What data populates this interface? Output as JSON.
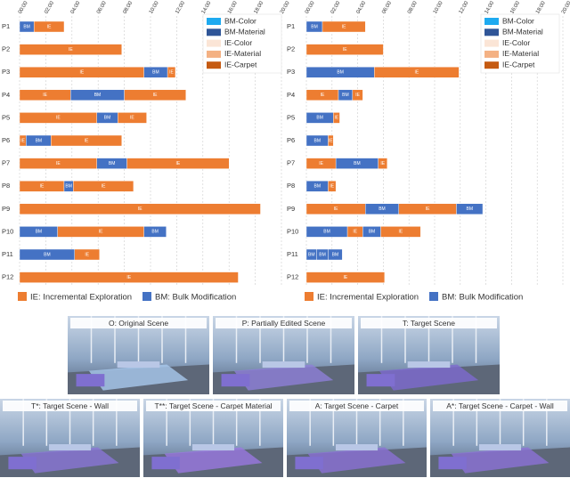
{
  "chart_data": [
    {
      "type": "timeline",
      "categories": [
        "P1",
        "P2",
        "P3",
        "P4",
        "P5",
        "P6",
        "P7",
        "P8",
        "P9",
        "P10",
        "P11",
        "P12"
      ],
      "segments": [
        [
          {
            "label": "BM",
            "start": 0,
            "end": 1.1
          },
          {
            "label": "IE",
            "start": 1.1,
            "end": 3.4
          }
        ],
        [
          {
            "label": "IE",
            "start": 0,
            "end": 7.8
          }
        ],
        [
          {
            "label": "IE",
            "start": 0,
            "end": 9.5
          },
          {
            "label": "BM",
            "start": 9.5,
            "end": 11.3
          },
          {
            "label": "IE",
            "start": 11.3,
            "end": 11.9
          }
        ],
        [
          {
            "label": "IE",
            "start": 0,
            "end": 3.9
          },
          {
            "label": "BM",
            "start": 3.9,
            "end": 8.0
          },
          {
            "label": "IE",
            "start": 8.0,
            "end": 12.7
          }
        ],
        [
          {
            "label": "IE",
            "start": 0,
            "end": 5.9
          },
          {
            "label": "BM",
            "start": 5.9,
            "end": 7.5
          },
          {
            "label": "IE",
            "start": 7.5,
            "end": 9.7
          }
        ],
        [
          {
            "label": "IE",
            "start": 0,
            "end": 0.5
          },
          {
            "label": "BM",
            "start": 0.5,
            "end": 2.4
          },
          {
            "label": "IE",
            "start": 2.4,
            "end": 7.8
          }
        ],
        [
          {
            "label": "IE",
            "start": 0,
            "end": 5.9
          },
          {
            "label": "BM",
            "start": 5.9,
            "end": 8.2
          },
          {
            "label": "IE",
            "start": 8.2,
            "end": 16.0
          }
        ],
        [
          {
            "label": "IE",
            "start": 0,
            "end": 3.4
          },
          {
            "label": "BM",
            "start": 3.4,
            "end": 4.1
          },
          {
            "label": "IE",
            "start": 4.1,
            "end": 8.7
          }
        ],
        [
          {
            "label": "IE",
            "start": 0,
            "end": 18.4
          }
        ],
        [
          {
            "label": "BM",
            "start": 0,
            "end": 2.9
          },
          {
            "label": "IE",
            "start": 2.9,
            "end": 9.5
          },
          {
            "label": "BM",
            "start": 9.5,
            "end": 11.2
          }
        ],
        [
          {
            "label": "BM",
            "start": 0,
            "end": 4.2
          },
          {
            "label": "IE",
            "start": 4.2,
            "end": 6.1
          }
        ],
        [
          {
            "label": "IE",
            "start": 0,
            "end": 16.7
          }
        ]
      ],
      "segment_colors": {
        "IE": "#ed7d31",
        "BM": "#4472c4"
      },
      "xlim": [
        0,
        20
      ],
      "xticks": [
        {
          "value": 0,
          "label": "00:00"
        },
        {
          "value": 2,
          "label": "02:00"
        },
        {
          "value": 4,
          "label": "04:00"
        },
        {
          "value": 6,
          "label": "06:00"
        },
        {
          "value": 8,
          "label": "08:00"
        },
        {
          "value": 10,
          "label": "10:00"
        },
        {
          "value": 12,
          "label": "12:00"
        },
        {
          "value": 14,
          "label": "14:00"
        },
        {
          "value": 16,
          "label": "16:00"
        },
        {
          "value": 18,
          "label": "18:00"
        },
        {
          "value": 20,
          "label": "20:00"
        }
      ],
      "grid": true,
      "legend": "upper right",
      "series": [
        {
          "name": "BM-Color",
          "color": "#1eaaf0"
        },
        {
          "name": "BM-Material",
          "color": "#2f5597"
        },
        {
          "name": "IE-Color",
          "color": "#fbe5d6"
        },
        {
          "name": "IE-Material",
          "color": "#f4b183"
        },
        {
          "name": "IE-Carpet",
          "color": "#c55a11"
        }
      ],
      "key": [
        {
          "label": "IE: Incremental Exploration",
          "color": "#ed7d31"
        },
        {
          "label": "BM: Bulk Modification",
          "color": "#4472c4"
        }
      ]
    },
    {
      "type": "timeline",
      "categories": [
        "P1",
        "P2",
        "P3",
        "P4",
        "P5",
        "P6",
        "P7",
        "P8",
        "P9",
        "P10",
        "P11",
        "P12"
      ],
      "segments": [
        [
          {
            "label": "BM",
            "start": 0,
            "end": 1.25
          },
          {
            "label": "IE",
            "start": 1.25,
            "end": 4.6
          }
        ],
        [
          {
            "label": "IE",
            "start": 0,
            "end": 6.0
          }
        ],
        [
          {
            "label": "BM",
            "start": 0,
            "end": 5.3
          },
          {
            "label": "IE",
            "start": 5.3,
            "end": 11.9
          }
        ],
        [
          {
            "label": "IE",
            "start": 0,
            "end": 2.5
          },
          {
            "label": "BM",
            "start": 2.5,
            "end": 3.6
          },
          {
            "label": "IE",
            "start": 3.6,
            "end": 4.4
          }
        ],
        [
          {
            "label": "BM",
            "start": 0,
            "end": 2.1
          },
          {
            "label": "IE",
            "start": 2.1,
            "end": 2.6
          }
        ],
        [
          {
            "label": "BM",
            "start": 0,
            "end": 1.7
          },
          {
            "label": "IE",
            "start": 1.7,
            "end": 2.1
          }
        ],
        [
          {
            "label": "IE",
            "start": 0,
            "end": 2.3
          },
          {
            "label": "BM",
            "start": 2.3,
            "end": 5.6
          },
          {
            "label": "IE",
            "start": 5.6,
            "end": 6.3
          }
        ],
        [
          {
            "label": "BM",
            "start": 0,
            "end": 1.7
          },
          {
            "label": "IE",
            "start": 1.7,
            "end": 2.3
          }
        ],
        [
          {
            "label": "IE",
            "start": 0,
            "end": 4.6
          },
          {
            "label": "BM",
            "start": 4.6,
            "end": 7.2
          },
          {
            "label": "IE",
            "start": 7.2,
            "end": 11.7
          },
          {
            "label": "BM",
            "start": 11.7,
            "end": 13.75
          }
        ],
        [
          {
            "label": "BM",
            "start": 0,
            "end": 3.2
          },
          {
            "label": "IE",
            "start": 3.2,
            "end": 4.4
          },
          {
            "label": "BM",
            "start": 4.4,
            "end": 5.8
          },
          {
            "label": "IE",
            "start": 5.8,
            "end": 8.9
          }
        ],
        [
          {
            "label": "BM",
            "start": 0,
            "end": 0.8
          },
          {
            "label": "BM",
            "start": 0.8,
            "end": 1.7
          },
          {
            "label": "BM",
            "start": 1.7,
            "end": 2.8
          }
        ],
        [
          {
            "label": "IE",
            "start": 0,
            "end": 6.1
          }
        ]
      ],
      "segment_colors": {
        "IE": "#ed7d31",
        "BM": "#4472c4"
      },
      "xlim": [
        0,
        20
      ],
      "xticks": [
        {
          "value": 0,
          "label": "00:00"
        },
        {
          "value": 2,
          "label": "02:00"
        },
        {
          "value": 4,
          "label": "04:00"
        },
        {
          "value": 6,
          "label": "06:00"
        },
        {
          "value": 8,
          "label": "08:00"
        },
        {
          "value": 10,
          "label": "10:00"
        },
        {
          "value": 12,
          "label": "12:00"
        },
        {
          "value": 14,
          "label": "14:00"
        },
        {
          "value": 16,
          "label": "16:00"
        },
        {
          "value": 18,
          "label": "18:00"
        },
        {
          "value": 20,
          "label": "20:00"
        }
      ],
      "grid": true,
      "legend": "upper right",
      "series": [
        {
          "name": "BM-Color",
          "color": "#1eaaf0"
        },
        {
          "name": "BM-Material",
          "color": "#2f5597"
        },
        {
          "name": "IE-Color",
          "color": "#fbe5d6"
        },
        {
          "name": "IE-Material",
          "color": "#f4b183"
        },
        {
          "name": "IE-Carpet",
          "color": "#c55a11"
        }
      ],
      "key": [
        {
          "label": "IE: Incremental Exploration",
          "color": "#ed7d31"
        },
        {
          "label": "BM: Bulk Modification",
          "color": "#4472c4"
        }
      ]
    }
  ],
  "scenes": [
    {
      "label": "O: Original Scene"
    },
    {
      "label": "P: Partially Edited Scene"
    },
    {
      "label": "T: Target Scene"
    },
    {
      "label": "T*: Target Scene - Wall"
    },
    {
      "label": "T**: Target Scene - Carpet Material"
    },
    {
      "label": "A: Target Scene - Carpet"
    },
    {
      "label": "A*: Target Scene - Carpet - Wall"
    }
  ]
}
